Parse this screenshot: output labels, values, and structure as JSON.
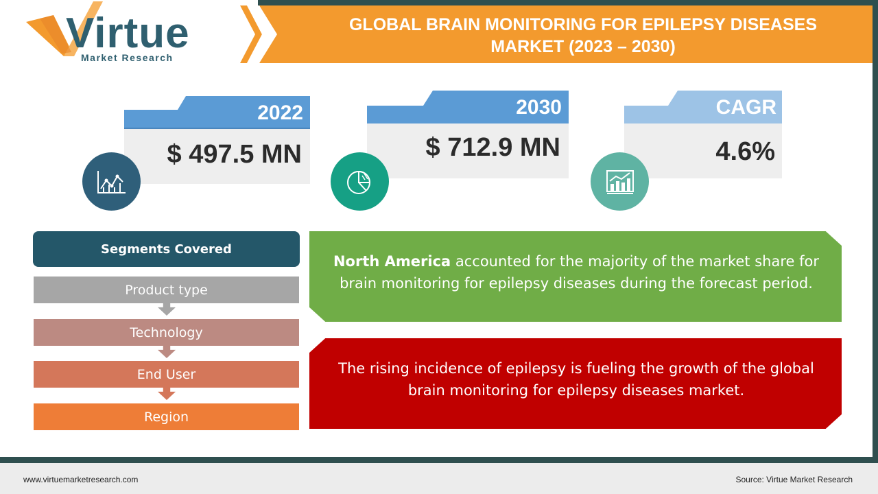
{
  "header": {
    "logo_word": "Virtue",
    "logo_sub": "Market Research",
    "title_line1": "GLOBAL BRAIN MONITORING FOR EPILEPSY DISEASES",
    "title_line2": "MARKET (2023 – 2030)"
  },
  "stats": [
    {
      "label": "2022",
      "value": "$ 497.5 MN",
      "icon": "line-chart-icon",
      "tab_color": "#5b9bd5",
      "icon_color": "#2f5f7a"
    },
    {
      "label": "2030",
      "value": "$ 712.9 MN",
      "icon": "pie-chart-icon",
      "tab_color": "#5b9bd5",
      "icon_color": "#16a085"
    },
    {
      "label": "CAGR",
      "value": "4.6%",
      "icon": "growth-chart-icon",
      "tab_color": "#9dc3e6",
      "icon_color": "#5fb3a3"
    }
  ],
  "segments": {
    "title": "Segments Covered",
    "items": [
      {
        "label": "Product type",
        "color": "#a6a6a6"
      },
      {
        "label": "Technology",
        "color": "#bc8a82"
      },
      {
        "label": "End User",
        "color": "#d4775a"
      },
      {
        "label": "Region",
        "color": "#ee7d37"
      }
    ]
  },
  "insights": {
    "green_bold": "North America",
    "green_rest": " accounted for the majority of the market share for  brain monitoring for epilepsy diseases during the forecast period.",
    "red_text": "The rising incidence of epilepsy is fueling the growth of the global brain monitoring for epilepsy diseases market."
  },
  "footer": {
    "website": "www.virtuemarketresearch.com",
    "source": "Source:  Virtue Market Research"
  }
}
